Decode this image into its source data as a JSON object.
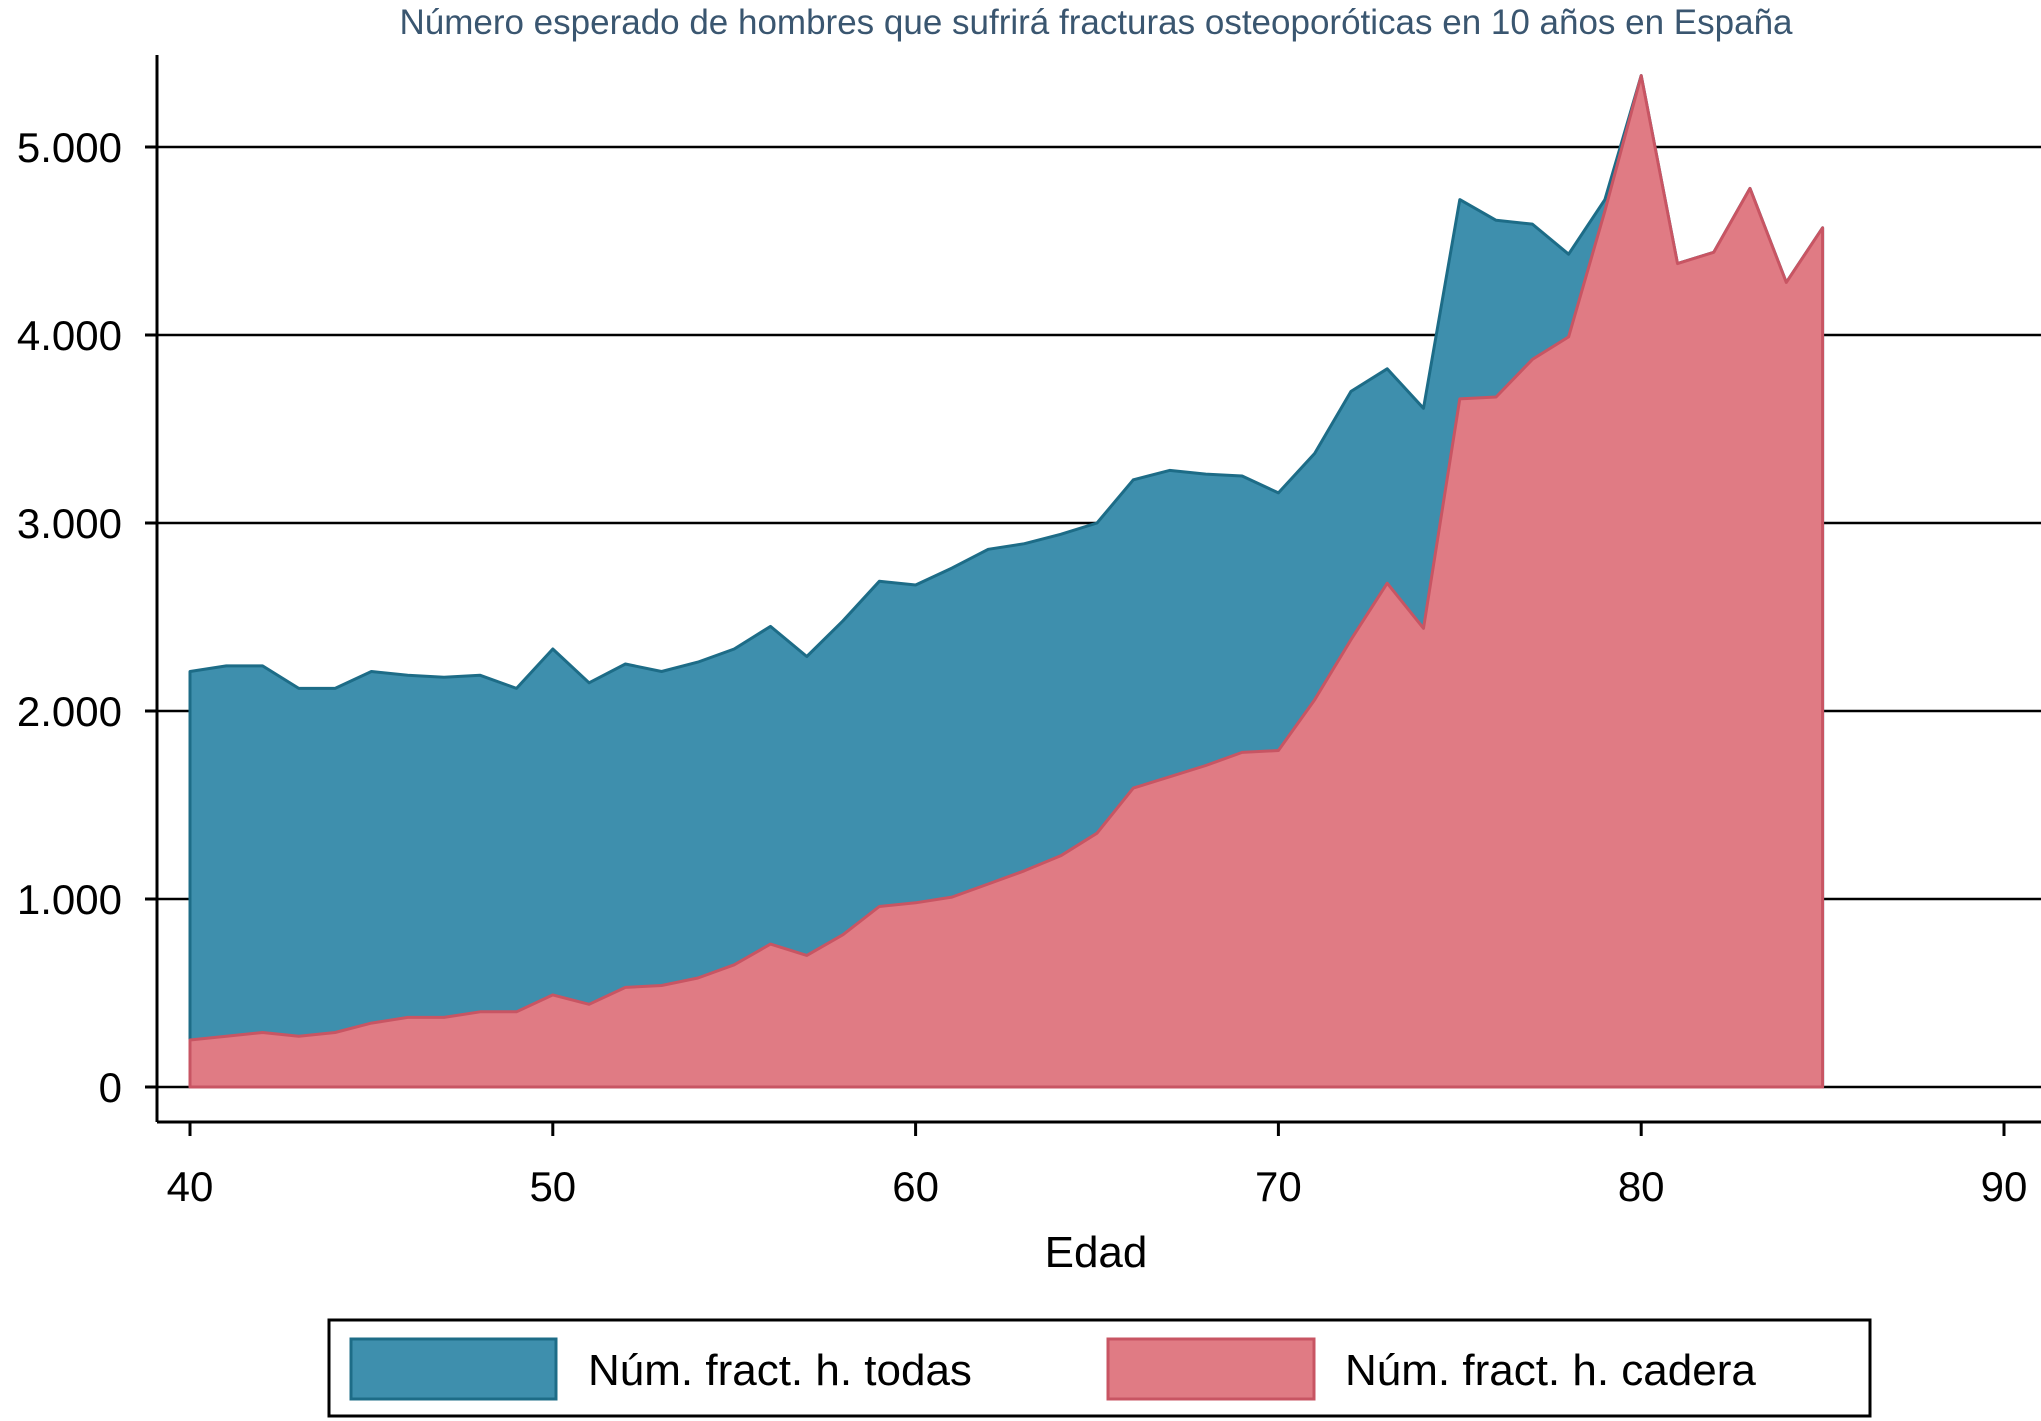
{
  "chart_data": {
    "type": "area",
    "title": "Número esperado de hombres que sufrirá fracturas osteoporóticas en 10 años en España",
    "xlabel": "Edad",
    "ylabel": "",
    "xlim": [
      40,
      90
    ],
    "ylim": [
      0,
      5000
    ],
    "x_ticks": [
      40,
      50,
      60,
      70,
      80,
      90
    ],
    "x_tick_labels": [
      "40",
      "50",
      "60",
      "70",
      "80",
      "90"
    ],
    "y_ticks": [
      0,
      1000,
      2000,
      3000,
      4000,
      5000
    ],
    "y_tick_labels": [
      "0",
      "1.000",
      "2.000",
      "3.000",
      "4.000",
      "5.000"
    ],
    "grid": "horizontal",
    "legend_position": "bottom",
    "x": [
      40,
      41,
      42,
      43,
      44,
      45,
      46,
      47,
      48,
      49,
      50,
      51,
      52,
      53,
      54,
      55,
      56,
      57,
      58,
      59,
      60,
      61,
      62,
      63,
      64,
      65,
      66,
      67,
      68,
      69,
      70,
      71,
      72,
      73,
      74,
      75,
      76,
      77,
      78,
      79,
      80,
      81,
      82,
      83,
      84,
      85
    ],
    "series": [
      {
        "name": "Núm. fract. h. todas",
        "color": "#3e8fad",
        "stroke": "#1d6c87",
        "values": [
          2210,
          2240,
          2240,
          2120,
          2120,
          2210,
          2190,
          2180,
          2190,
          2120,
          2330,
          2150,
          2250,
          2210,
          2260,
          2330,
          2450,
          2290,
          2480,
          2690,
          2670,
          2760,
          2860,
          2890,
          2940,
          3000,
          3230,
          3280,
          3260,
          3250,
          3160,
          3370,
          3700,
          3820,
          3610,
          4720,
          4610,
          4590,
          4430,
          4720,
          5380,
          4380,
          4440,
          4780,
          4280,
          4570
        ]
      },
      {
        "name": "Núm. fract. h. cadera",
        "color": "#e07b84",
        "stroke": "#c85563",
        "values": [
          250,
          270,
          290,
          270,
          290,
          340,
          370,
          370,
          400,
          400,
          490,
          440,
          530,
          540,
          580,
          650,
          760,
          700,
          810,
          960,
          980,
          1010,
          1080,
          1150,
          1230,
          1350,
          1590,
          1650,
          1710,
          1780,
          1790,
          2060,
          2380,
          2680,
          2440,
          3660,
          3670,
          3870,
          3990,
          4660,
          5380,
          4380,
          4440,
          4780,
          4280,
          4570
        ]
      }
    ]
  }
}
